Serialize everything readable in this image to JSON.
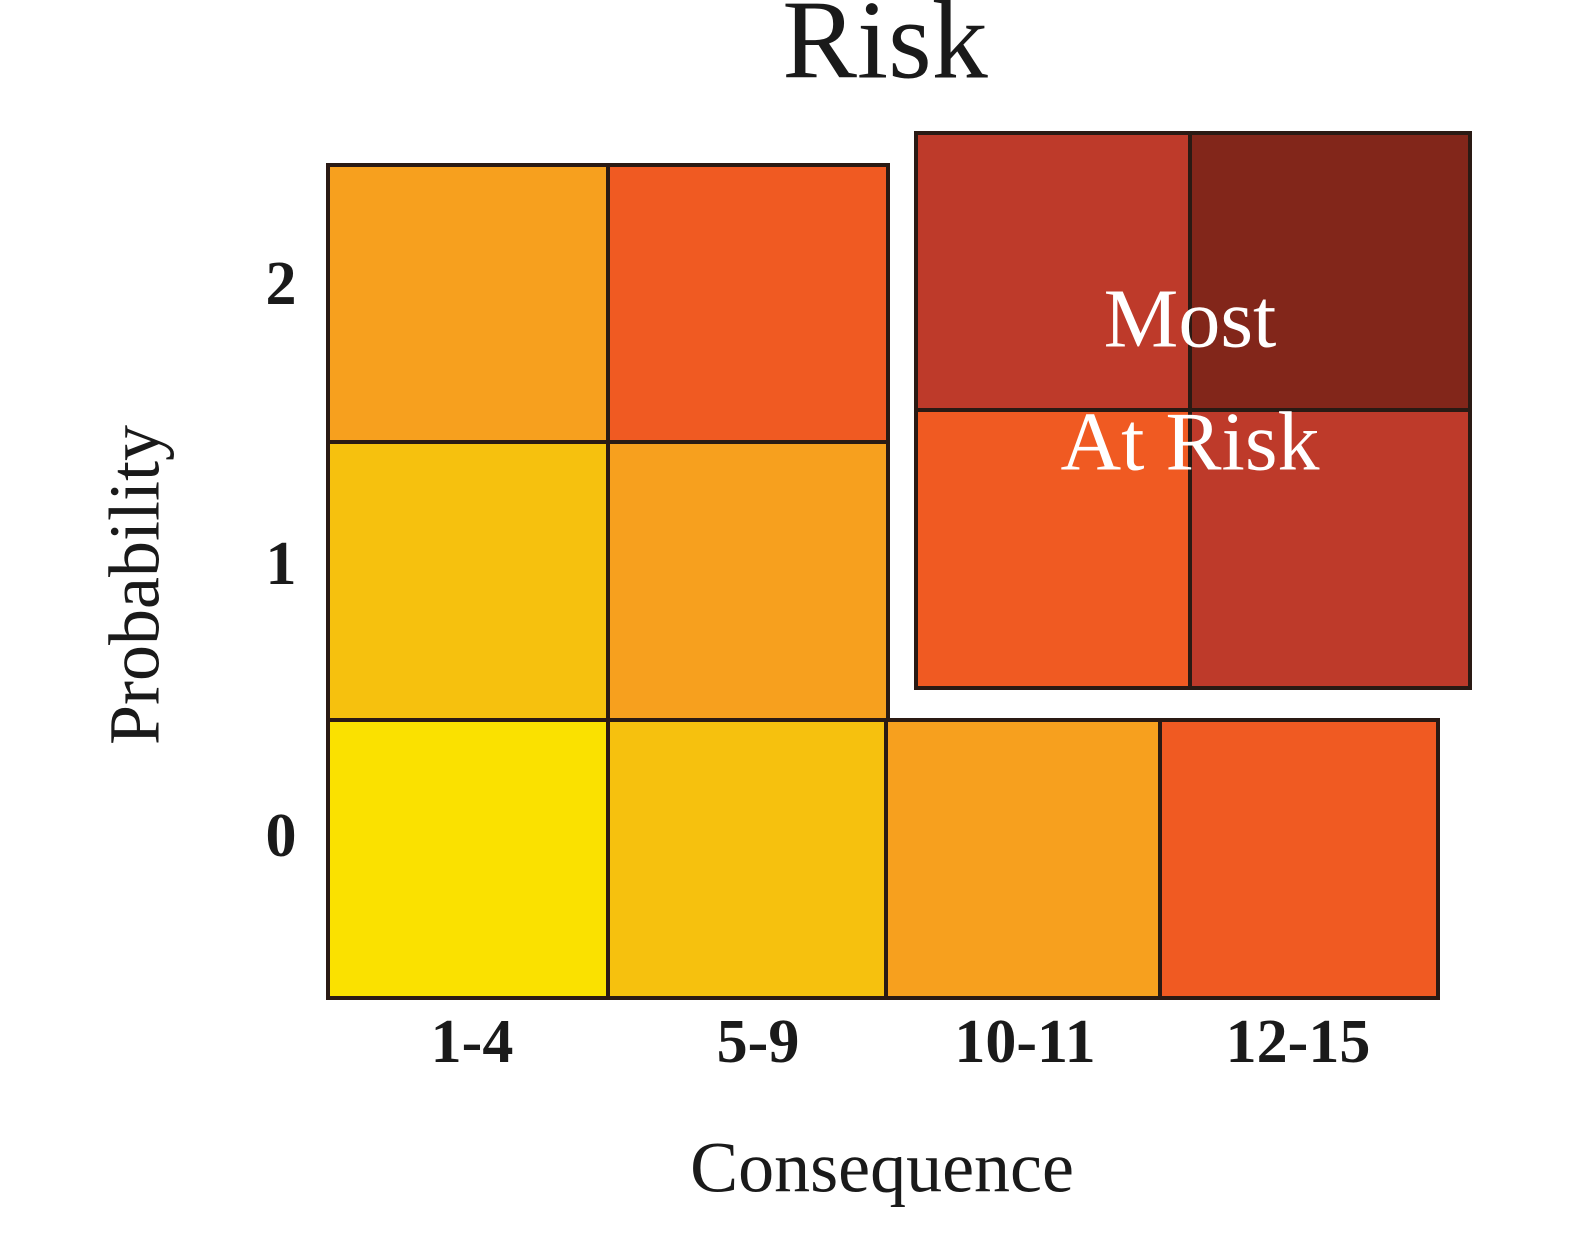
{
  "title": "Risk",
  "x_axis": {
    "label": "Consequence",
    "categories": [
      "1-4",
      "5-9",
      "10-11",
      "12-15"
    ]
  },
  "y_axis": {
    "label": "Probability",
    "categories": [
      "0",
      "1",
      "2"
    ]
  },
  "cells": [
    {
      "color": "#F7A01E"
    },
    {
      "color": "#F05A22"
    },
    {
      "color": "#F6C10E"
    },
    {
      "color": "#F7A01E"
    },
    {
      "color": "#FAE100"
    },
    {
      "color": "#F6C10E"
    },
    {
      "color": "#F7A01E"
    },
    {
      "color": "#F05A22"
    },
    {
      "color": "#BE3A2A"
    },
    {
      "color": "#82261A"
    },
    {
      "color": "#F05A22"
    },
    {
      "color": "#BE3A2A"
    }
  ],
  "annotation": {
    "lines": [
      "Most",
      "At Risk"
    ]
  }
}
